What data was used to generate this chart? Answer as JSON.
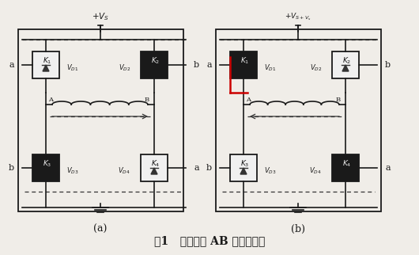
{
  "title": "图1   电机绕组 AB 的电流方向",
  "sub_a": "(a)",
  "sub_b": "(b)",
  "vs_label_a": "+V$_S$",
  "vs_label_b": "+V$_{S+V_s}$",
  "bg_color": "#f0ede8",
  "line_color": "#1a1a1a",
  "dashed_color": "#333333",
  "red_color": "#cc0000",
  "dark_box_color": "#2a2a2a",
  "light_box_color": "#ffffff",
  "figsize": [
    5.3,
    3.22
  ],
  "dpi": 100
}
